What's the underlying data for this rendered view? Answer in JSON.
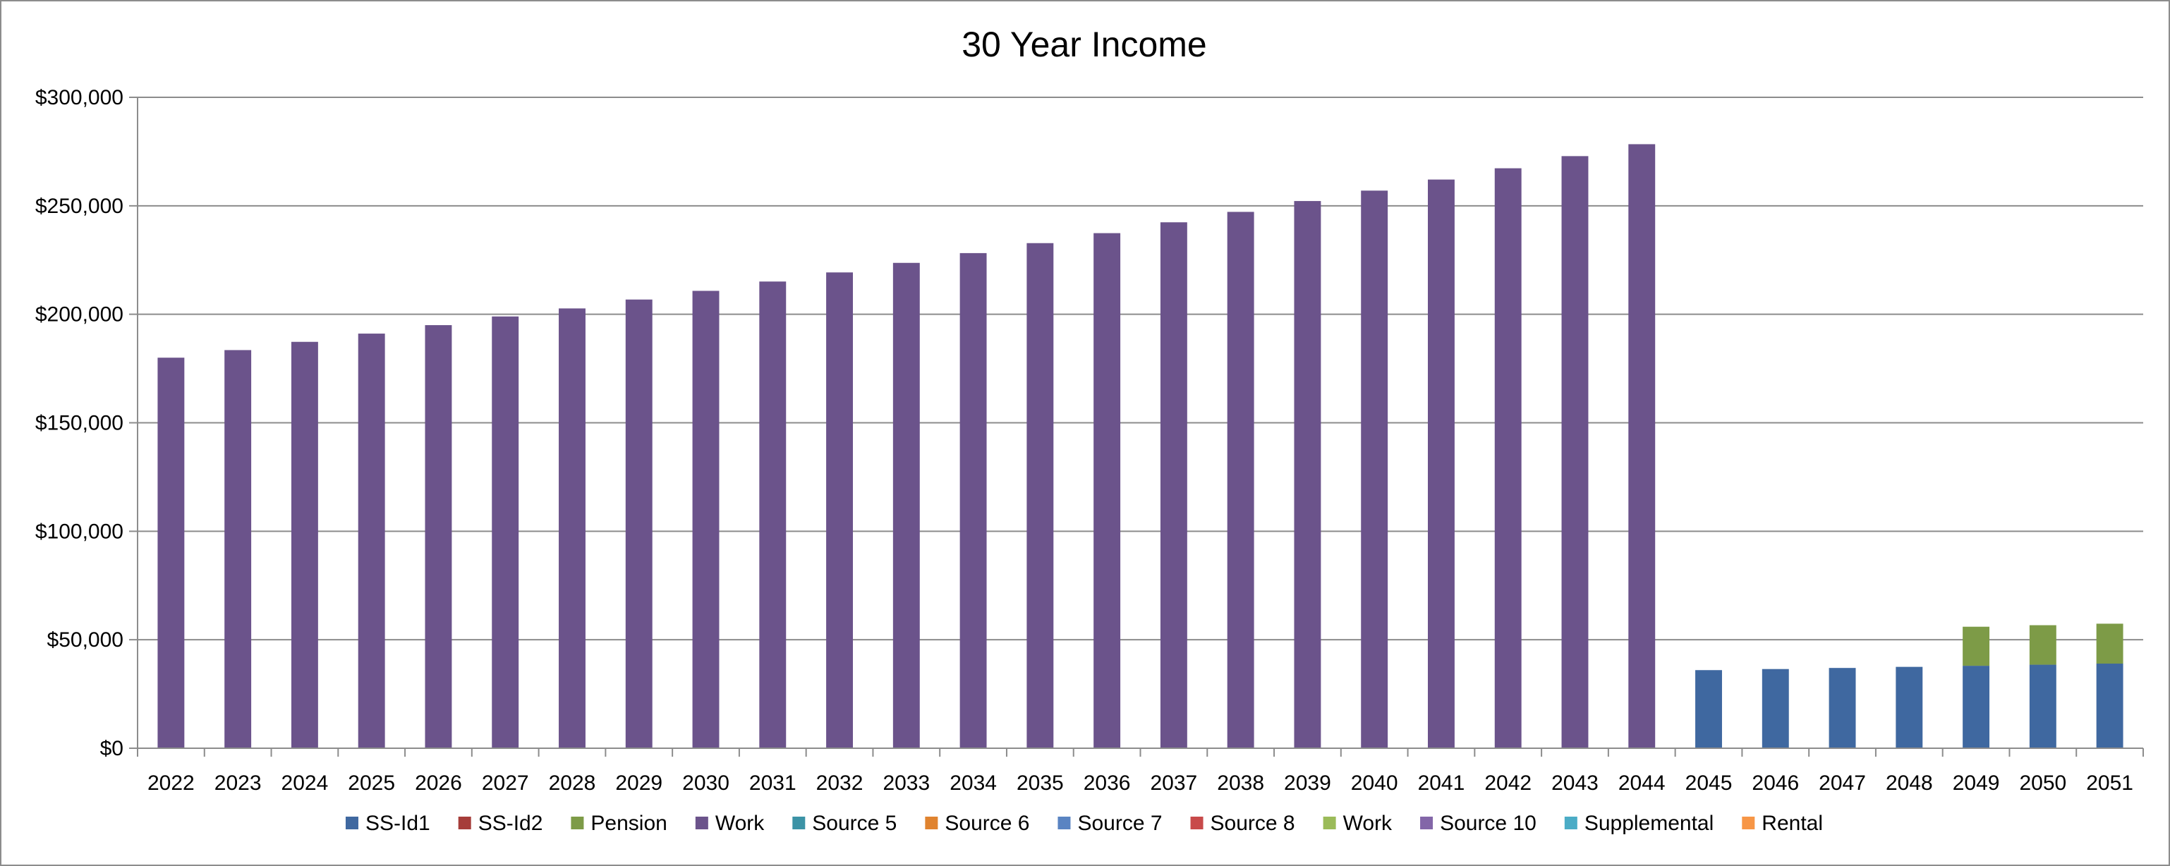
{
  "chart_data": {
    "type": "bar",
    "stacked": true,
    "title": "30 Year Income",
    "xlabel": "",
    "ylabel": "",
    "ylim": [
      0,
      300000
    ],
    "yticks": [
      0,
      50000,
      100000,
      150000,
      200000,
      250000,
      300000
    ],
    "ytick_labels": [
      "$0",
      "$50,000",
      "$100,000",
      "$150,000",
      "$200,000",
      "$250,000",
      "$300,000"
    ],
    "grid": true,
    "legend_position": "bottom",
    "categories": [
      "2022",
      "2023",
      "2024",
      "2025",
      "2026",
      "2027",
      "2028",
      "2029",
      "2030",
      "2031",
      "2032",
      "2033",
      "2034",
      "2035",
      "2036",
      "2037",
      "2038",
      "2039",
      "2040",
      "2041",
      "2042",
      "2043",
      "2044",
      "2045",
      "2046",
      "2047",
      "2048",
      "2049",
      "2050",
      "2051"
    ],
    "series": [
      {
        "name": "SS-Id1",
        "color": "#3F68A0",
        "values": [
          0,
          0,
          0,
          0,
          0,
          0,
          0,
          0,
          0,
          0,
          0,
          0,
          0,
          0,
          0,
          0,
          0,
          0,
          0,
          0,
          0,
          0,
          0,
          36000,
          36500,
          37000,
          37500,
          38000,
          38500,
          39000
        ]
      },
      {
        "name": "SS-Id2",
        "color": "#A63D3A",
        "values": [
          0,
          0,
          0,
          0,
          0,
          0,
          0,
          0,
          0,
          0,
          0,
          0,
          0,
          0,
          0,
          0,
          0,
          0,
          0,
          0,
          0,
          0,
          0,
          0,
          0,
          0,
          0,
          0,
          0,
          0
        ]
      },
      {
        "name": "Pension",
        "color": "#7D9B47",
        "values": [
          0,
          0,
          0,
          0,
          0,
          0,
          0,
          0,
          0,
          0,
          0,
          0,
          0,
          0,
          0,
          0,
          0,
          0,
          0,
          0,
          0,
          0,
          0,
          0,
          0,
          0,
          0,
          18000,
          18200,
          18400
        ]
      },
      {
        "name": "Work",
        "color": "#6B538B",
        "values": [
          180000,
          183500,
          187300,
          191100,
          195000,
          199000,
          202700,
          206800,
          210800,
          215100,
          219300,
          223700,
          228200,
          232800,
          237400,
          242400,
          247200,
          252200,
          257000,
          262100,
          267300,
          272900,
          278400,
          0,
          0,
          0,
          0,
          0,
          0,
          0
        ]
      },
      {
        "name": "Source 5",
        "color": "#3C93A6",
        "values": [
          0,
          0,
          0,
          0,
          0,
          0,
          0,
          0,
          0,
          0,
          0,
          0,
          0,
          0,
          0,
          0,
          0,
          0,
          0,
          0,
          0,
          0,
          0,
          0,
          0,
          0,
          0,
          0,
          0,
          0
        ]
      },
      {
        "name": "Source 6",
        "color": "#E0832F",
        "values": [
          0,
          0,
          0,
          0,
          0,
          0,
          0,
          0,
          0,
          0,
          0,
          0,
          0,
          0,
          0,
          0,
          0,
          0,
          0,
          0,
          0,
          0,
          0,
          0,
          0,
          0,
          0,
          0,
          0,
          0
        ]
      },
      {
        "name": "Source 7",
        "color": "#5A84C2",
        "values": [
          0,
          0,
          0,
          0,
          0,
          0,
          0,
          0,
          0,
          0,
          0,
          0,
          0,
          0,
          0,
          0,
          0,
          0,
          0,
          0,
          0,
          0,
          0,
          0,
          0,
          0,
          0,
          0,
          0,
          0
        ]
      },
      {
        "name": "Source 8",
        "color": "#C84A4A",
        "values": [
          0,
          0,
          0,
          0,
          0,
          0,
          0,
          0,
          0,
          0,
          0,
          0,
          0,
          0,
          0,
          0,
          0,
          0,
          0,
          0,
          0,
          0,
          0,
          0,
          0,
          0,
          0,
          0,
          0,
          0
        ]
      },
      {
        "name": "Work",
        "color": "#9BBB59",
        "values": [
          0,
          0,
          0,
          0,
          0,
          0,
          0,
          0,
          0,
          0,
          0,
          0,
          0,
          0,
          0,
          0,
          0,
          0,
          0,
          0,
          0,
          0,
          0,
          0,
          0,
          0,
          0,
          0,
          0,
          0
        ]
      },
      {
        "name": "Source 10",
        "color": "#8366A8",
        "values": [
          0,
          0,
          0,
          0,
          0,
          0,
          0,
          0,
          0,
          0,
          0,
          0,
          0,
          0,
          0,
          0,
          0,
          0,
          0,
          0,
          0,
          0,
          0,
          0,
          0,
          0,
          0,
          0,
          0,
          0
        ]
      },
      {
        "name": "Supplemental",
        "color": "#4BACC6",
        "values": [
          0,
          0,
          0,
          0,
          0,
          0,
          0,
          0,
          0,
          0,
          0,
          0,
          0,
          0,
          0,
          0,
          0,
          0,
          0,
          0,
          0,
          0,
          0,
          0,
          0,
          0,
          0,
          0,
          0,
          0
        ]
      },
      {
        "name": "Rental",
        "color": "#F79646",
        "values": [
          0,
          0,
          0,
          0,
          0,
          0,
          0,
          0,
          0,
          0,
          0,
          0,
          0,
          0,
          0,
          0,
          0,
          0,
          0,
          0,
          0,
          0,
          0,
          0,
          0,
          0,
          0,
          0,
          0,
          0
        ]
      }
    ]
  }
}
